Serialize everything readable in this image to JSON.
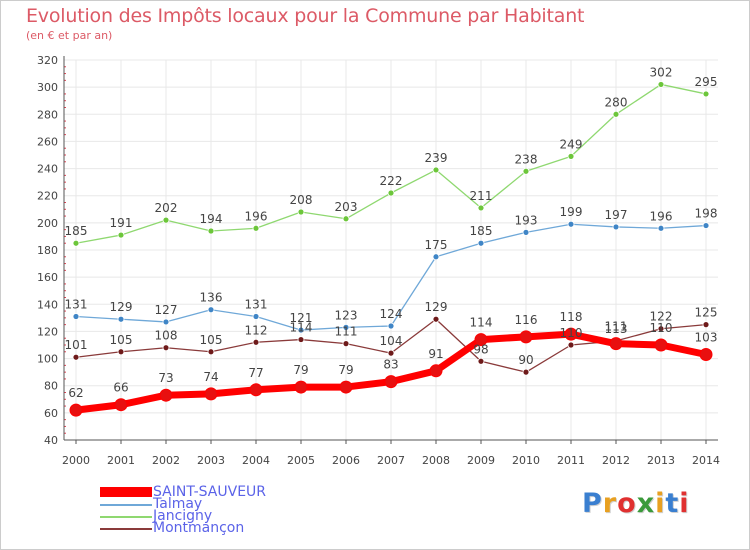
{
  "header": {
    "title": "Evolution des Impôts locaux pour la Commune par Habitant",
    "subtitle": "(en € et par an)"
  },
  "colors": {
    "axis": "#555555",
    "grid": "#e8e8e8",
    "tick_marks": "#e04050",
    "label_text": "#444444"
  },
  "logo": {
    "text": "Proxiti",
    "letter_colors": [
      "#3a7fd0",
      "#e8a020",
      "#e03030",
      "#3a9a3a",
      "#e8a020",
      "#3a7fd0",
      "#e03030"
    ]
  },
  "chart_data": {
    "type": "line",
    "title": "Evolution des Impôts locaux pour la Commune par Habitant",
    "subtitle": "(en € et par an)",
    "categories": [
      "2000",
      "2001",
      "2002",
      "2003",
      "2004",
      "2005",
      "2006",
      "2007",
      "2008",
      "2009",
      "2010",
      "2011",
      "2012",
      "2013",
      "2014"
    ],
    "ylim": [
      40,
      320
    ],
    "yticks": [
      40,
      60,
      80,
      100,
      120,
      140,
      160,
      180,
      200,
      220,
      240,
      260,
      280,
      300,
      320
    ],
    "grid": true,
    "legend_position": "bottom-left",
    "series": [
      {
        "name": "SAINT-SAUVEUR",
        "color": "#ff0000",
        "marker_color": "#e81010",
        "width": 7,
        "values": [
          62,
          66,
          73,
          74,
          77,
          79,
          79,
          83,
          91,
          114,
          116,
          118,
          111,
          110,
          103
        ]
      },
      {
        "name": "Talmay",
        "color": "#6fa8d8",
        "marker_color": "#3f85c6",
        "width": 1.3,
        "values": [
          131,
          129,
          127,
          136,
          131,
          121,
          123,
          124,
          175,
          185,
          193,
          199,
          197,
          196,
          198
        ]
      },
      {
        "name": "Jancigny",
        "color": "#8fd870",
        "marker_color": "#6cc63a",
        "width": 1.3,
        "values": [
          185,
          191,
          202,
          194,
          196,
          208,
          203,
          222,
          239,
          211,
          238,
          249,
          280,
          302,
          295
        ]
      },
      {
        "name": "Montmançon",
        "color": "#8a3a3a",
        "marker_color": "#6e1a1a",
        "width": 1.3,
        "values": [
          101,
          105,
          108,
          105,
          112,
          114,
          111,
          104,
          129,
          98,
          90,
          110,
          113,
          122,
          125
        ]
      }
    ]
  }
}
